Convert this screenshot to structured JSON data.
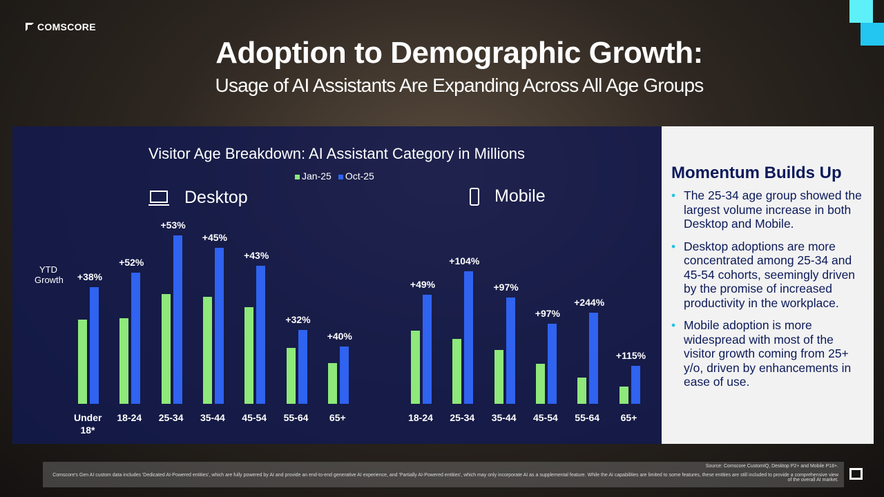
{
  "brand": "COMSCORE",
  "title": "Adoption to Demographic Growth:",
  "subtitle": "Usage of AI Assistants Are Expanding Across All Age Groups",
  "chart_data": [
    {
      "type": "bar",
      "title": "Visitor Age Breakdown: AI Assistant Category in Millions",
      "section": "Desktop",
      "ylabel": "YTD Growth",
      "categories": [
        "Under 18*",
        "18-24",
        "25-34",
        "35-44",
        "45-54",
        "55-64",
        "65+"
      ],
      "series": [
        {
          "name": "Jan-25",
          "color": "#8ee87a",
          "values": [
            12.2,
            12.4,
            15.9,
            15.5,
            14.0,
            8.1,
            5.9
          ]
        },
        {
          "name": "Oct-25",
          "color": "#2f63f0",
          "values": [
            16.9,
            19.0,
            24.4,
            22.6,
            20.0,
            10.7,
            8.3
          ]
        }
      ],
      "growth_labels": [
        "+38%",
        "+52%",
        "+53%",
        "+45%",
        "+43%",
        "+32%",
        "+40%"
      ],
      "ylim": [
        0,
        25
      ]
    },
    {
      "type": "bar",
      "section": "Mobile",
      "categories": [
        "18-24",
        "25-34",
        "35-44",
        "45-54",
        "55-64",
        "65+"
      ],
      "series": [
        {
          "name": "Jan-25",
          "color": "#8ee87a",
          "values": [
            10.6,
            9.4,
            7.8,
            5.8,
            3.8,
            2.5
          ]
        },
        {
          "name": "Oct-25",
          "color": "#2f63f0",
          "values": [
            15.8,
            19.2,
            15.4,
            11.6,
            13.2,
            5.5
          ]
        }
      ],
      "growth_labels": [
        "+49%",
        "+104%",
        "+97%",
        "+97%",
        "+244%",
        "+115%"
      ],
      "ylim": [
        0,
        25
      ]
    }
  ],
  "side": {
    "heading": "Momentum Builds Up",
    "bullets": [
      "The 25-34 age group showed the largest volume increase in both Desktop and Mobile.",
      "Desktop adoptions are more concentrated among 25-34 and 45-54 cohorts, seemingly driven by the promise of increased productivity in the workplace.",
      "Mobile adoption is more widespread with most of the visitor growth coming from 25+ y/o, driven by enhancements in ease of use."
    ]
  },
  "footer": {
    "source": "Source: Comscore CustomIQ, Desktop P2+ and Mobile P18+.",
    "note": "Comscore's Gen AI custom data includes 'Dedicated AI-Powered entities', which are fully powered by AI and provide an end-to-end generative AI experience, and 'Partially AI-Powered entities', which may only incorporate AI as a supplemental feature. While the AI capabilities are limited to some features, these entities are still included to provide a comprehensive view of the overall AI market."
  }
}
